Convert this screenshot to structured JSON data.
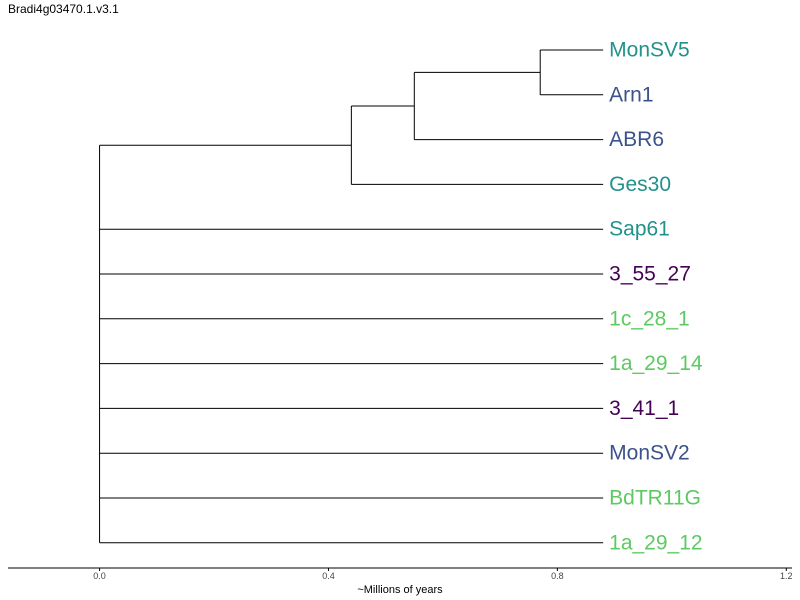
{
  "chart_data": {
    "type": "dendrogram",
    "title": "Bradi4g03470.1.v3.1",
    "xlabel": "~Millions of years",
    "xlim": [
      -0.16,
      1.21
    ],
    "xticks": [
      0.0,
      0.4,
      0.8,
      1.2
    ],
    "xtick_labels": [
      "0.0",
      "0.4",
      "0.8",
      "1.2"
    ],
    "leaves": [
      {
        "name": "MonSV5",
        "color": "#21918c"
      },
      {
        "name": "Arn1",
        "color": "#3b528b"
      },
      {
        "name": "ABR6",
        "color": "#3b528b"
      },
      {
        "name": "Ges30",
        "color": "#21918c"
      },
      {
        "name": "Sap61",
        "color": "#21918c"
      },
      {
        "name": "3_55_27",
        "color": "#440154"
      },
      {
        "name": "1c_28_1",
        "color": "#5ec962"
      },
      {
        "name": "1a_29_14",
        "color": "#5ec962"
      },
      {
        "name": "3_41_1",
        "color": "#440154"
      },
      {
        "name": "MonSV2",
        "color": "#3b528b"
      },
      {
        "name": "BdTR11G",
        "color": "#5ec962"
      },
      {
        "name": "1a_29_12",
        "color": "#5ec962"
      }
    ],
    "leaf_position": 0.88,
    "internal_nodes": [
      {
        "id": "n1",
        "x": 0.77,
        "children": [
          "MonSV5",
          "Arn1"
        ]
      },
      {
        "id": "n2",
        "x": 0.55,
        "children": [
          "n1",
          "ABR6"
        ]
      },
      {
        "id": "n3",
        "x": 0.44,
        "children": [
          "n2",
          "Ges30"
        ]
      },
      {
        "id": "root",
        "x": 0.0,
        "children": [
          "n3",
          "Sap61",
          "3_55_27",
          "1c_28_1",
          "1a_29_14",
          "3_41_1",
          "MonSV2",
          "BdTR11G",
          "1a_29_12"
        ]
      }
    ],
    "grid": false
  }
}
